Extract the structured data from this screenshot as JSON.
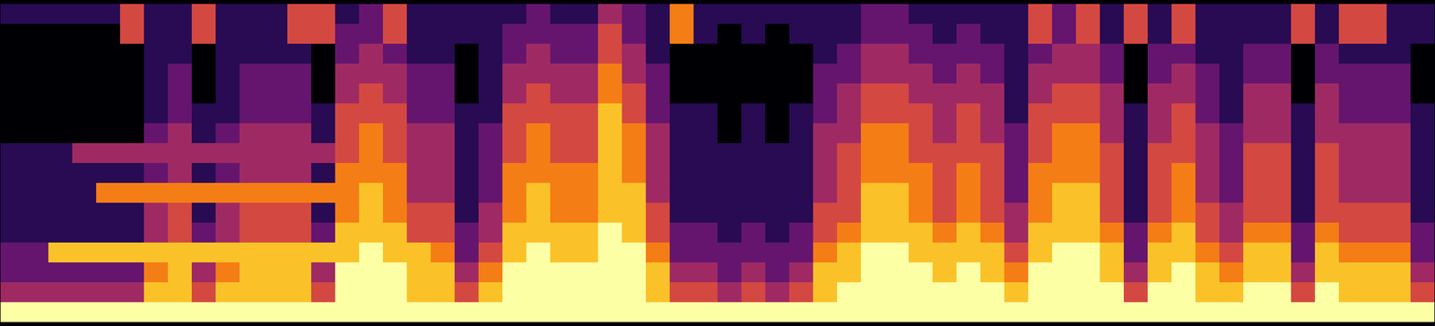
{
  "chart_data": {
    "type": "heatmap",
    "tick_labels": false,
    "cells": [
      [
        3,
        3,
        3,
        3,
        3,
        6,
        3,
        3,
        6,
        3,
        3,
        3,
        6,
        6,
        3,
        4,
        6,
        3,
        3,
        3,
        3,
        3,
        4,
        3,
        3,
        5,
        4,
        3,
        7,
        3,
        3,
        3,
        3,
        3,
        3,
        3,
        4,
        4,
        3,
        3,
        3,
        3,
        3,
        6,
        4,
        6,
        3,
        6,
        3,
        6,
        3,
        3,
        3,
        3,
        6,
        3,
        6,
        6,
        3,
        3
      ],
      [
        2,
        2,
        2,
        2,
        2,
        6,
        3,
        3,
        6,
        3,
        3,
        3,
        6,
        6,
        4,
        4,
        6,
        3,
        3,
        3,
        3,
        4,
        4,
        4,
        4,
        6,
        4,
        3,
        7,
        3,
        2,
        3,
        2,
        3,
        3,
        3,
        4,
        4,
        4,
        3,
        4,
        3,
        3,
        6,
        4,
        6,
        3,
        6,
        3,
        6,
        3,
        3,
        3,
        3,
        6,
        3,
        6,
        6,
        3,
        3
      ],
      [
        2,
        2,
        2,
        2,
        2,
        2,
        3,
        3,
        2,
        3,
        3,
        3,
        3,
        2,
        4,
        5,
        4,
        3,
        3,
        2,
        3,
        4,
        5,
        4,
        4,
        6,
        5,
        3,
        2,
        2,
        2,
        2,
        2,
        2,
        3,
        4,
        5,
        5,
        4,
        4,
        4,
        4,
        3,
        4,
        5,
        5,
        4,
        2,
        4,
        4,
        3,
        3,
        4,
        4,
        2,
        4,
        3,
        3,
        3,
        2
      ],
      [
        2,
        2,
        2,
        2,
        2,
        2,
        3,
        4,
        2,
        3,
        4,
        4,
        4,
        2,
        5,
        5,
        5,
        4,
        4,
        2,
        3,
        5,
        5,
        5,
        5,
        7,
        5,
        4,
        2,
        2,
        2,
        2,
        2,
        2,
        4,
        4,
        5,
        5,
        5,
        4,
        5,
        4,
        3,
        5,
        5,
        5,
        4,
        2,
        4,
        5,
        4,
        3,
        4,
        4,
        2,
        4,
        4,
        4,
        4,
        2
      ],
      [
        2,
        2,
        2,
        2,
        2,
        2,
        3,
        4,
        2,
        3,
        4,
        4,
        4,
        2,
        5,
        6,
        5,
        4,
        4,
        2,
        3,
        5,
        6,
        5,
        5,
        7,
        6,
        4,
        2,
        2,
        2,
        2,
        2,
        2,
        4,
        5,
        6,
        6,
        5,
        5,
        5,
        5,
        3,
        5,
        6,
        6,
        5,
        2,
        5,
        5,
        4,
        3,
        5,
        5,
        2,
        5,
        4,
        4,
        4,
        2
      ],
      [
        2,
        2,
        2,
        2,
        2,
        2,
        3,
        4,
        3,
        3,
        4,
        4,
        4,
        3,
        6,
        6,
        6,
        4,
        4,
        3,
        3,
        6,
        6,
        6,
        6,
        8,
        6,
        4,
        3,
        3,
        2,
        3,
        2,
        3,
        4,
        5,
        6,
        6,
        6,
        5,
        6,
        5,
        3,
        6,
        6,
        6,
        5,
        3,
        5,
        6,
        4,
        3,
        5,
        5,
        3,
        5,
        4,
        4,
        4,
        3
      ],
      [
        2,
        2,
        2,
        2,
        2,
        2,
        4,
        5,
        3,
        4,
        5,
        5,
        5,
        3,
        6,
        7,
        6,
        5,
        5,
        3,
        4,
        6,
        7,
        6,
        6,
        8,
        7,
        5,
        3,
        3,
        2,
        3,
        2,
        3,
        5,
        5,
        7,
        7,
        6,
        5,
        6,
        5,
        4,
        6,
        7,
        7,
        5,
        3,
        5,
        6,
        5,
        4,
        5,
        5,
        3,
        5,
        5,
        5,
        5,
        3
      ],
      [
        3,
        3,
        3,
        5,
        5,
        5,
        5,
        5,
        5,
        5,
        5,
        5,
        5,
        5,
        6,
        7,
        6,
        5,
        5,
        3,
        4,
        6,
        7,
        6,
        6,
        8,
        7,
        5,
        3,
        3,
        3,
        3,
        3,
        3,
        5,
        6,
        7,
        7,
        6,
        6,
        6,
        6,
        4,
        6,
        7,
        7,
        6,
        3,
        6,
        6,
        5,
        4,
        6,
        6,
        3,
        6,
        5,
        5,
        5,
        3
      ],
      [
        3,
        3,
        3,
        3,
        3,
        3,
        4,
        5,
        3,
        4,
        5,
        5,
        5,
        3,
        7,
        7,
        7,
        5,
        5,
        3,
        4,
        7,
        7,
        7,
        7,
        8,
        7,
        5,
        3,
        3,
        3,
        3,
        3,
        3,
        5,
        6,
        7,
        7,
        7,
        6,
        7,
        6,
        4,
        7,
        7,
        7,
        6,
        3,
        6,
        7,
        5,
        4,
        6,
        6,
        3,
        6,
        5,
        5,
        5,
        3
      ],
      [
        3,
        3,
        3,
        3,
        7,
        7,
        7,
        7,
        7,
        7,
        7,
        7,
        7,
        7,
        7,
        8,
        7,
        5,
        5,
        3,
        4,
        7,
        8,
        7,
        7,
        8,
        8,
        5,
        3,
        3,
        3,
        3,
        3,
        3,
        5,
        6,
        8,
        8,
        7,
        6,
        7,
        6,
        4,
        7,
        8,
        8,
        6,
        3,
        6,
        7,
        5,
        4,
        6,
        6,
        3,
        6,
        5,
        5,
        5,
        3
      ],
      [
        3,
        3,
        3,
        3,
        3,
        3,
        5,
        6,
        3,
        5,
        6,
        6,
        6,
        3,
        7,
        8,
        7,
        6,
        6,
        3,
        5,
        7,
        8,
        7,
        7,
        8,
        8,
        6,
        3,
        3,
        3,
        3,
        3,
        3,
        6,
        6,
        8,
        8,
        7,
        6,
        7,
        6,
        5,
        7,
        8,
        8,
        6,
        3,
        6,
        7,
        6,
        5,
        6,
        6,
        3,
        6,
        6,
        6,
        6,
        3
      ],
      [
        3,
        3,
        3,
        3,
        3,
        3,
        5,
        6,
        4,
        5,
        6,
        6,
        6,
        4,
        8,
        8,
        8,
        6,
        6,
        4,
        5,
        8,
        8,
        8,
        8,
        9,
        8,
        6,
        4,
        4,
        3,
        4,
        3,
        4,
        6,
        7,
        8,
        8,
        8,
        7,
        8,
        7,
        5,
        8,
        8,
        8,
        7,
        4,
        7,
        8,
        6,
        5,
        7,
        7,
        4,
        7,
        6,
        6,
        6,
        4
      ],
      [
        4,
        4,
        8,
        8,
        8,
        8,
        8,
        8,
        8,
        8,
        8,
        8,
        8,
        8,
        8,
        9,
        8,
        8,
        7,
        4,
        6,
        8,
        9,
        8,
        8,
        9,
        9,
        7,
        4,
        4,
        4,
        4,
        4,
        4,
        7,
        8,
        9,
        9,
        8,
        8,
        8,
        8,
        6,
        8,
        9,
        9,
        8,
        4,
        8,
        8,
        7,
        6,
        8,
        8,
        4,
        8,
        7,
        7,
        7,
        4
      ],
      [
        4,
        4,
        4,
        4,
        4,
        4,
        7,
        8,
        5,
        7,
        8,
        8,
        8,
        5,
        9,
        9,
        9,
        8,
        8,
        5,
        7,
        9,
        9,
        9,
        9,
        9,
        9,
        8,
        5,
        5,
        4,
        5,
        4,
        5,
        8,
        8,
        9,
        9,
        9,
        8,
        9,
        8,
        7,
        9,
        9,
        9,
        8,
        5,
        8,
        9,
        8,
        7,
        8,
        8,
        5,
        8,
        8,
        8,
        8,
        5
      ],
      [
        5,
        5,
        5,
        5,
        5,
        5,
        8,
        8,
        6,
        8,
        8,
        8,
        8,
        6,
        9,
        9,
        9,
        8,
        8,
        6,
        8,
        9,
        9,
        9,
        9,
        9,
        9,
        8,
        6,
        6,
        5,
        6,
        5,
        6,
        8,
        9,
        9,
        9,
        9,
        9,
        9,
        9,
        8,
        9,
        9,
        9,
        9,
        6,
        9,
        9,
        8,
        8,
        9,
        9,
        6,
        9,
        8,
        8,
        8,
        6
      ],
      [
        9,
        9,
        9,
        9,
        9,
        9,
        9,
        9,
        9,
        9,
        9,
        9,
        9,
        9,
        9,
        9,
        9,
        9,
        9,
        9,
        9,
        9,
        9,
        9,
        9,
        9,
        9,
        9,
        9,
        9,
        9,
        9,
        9,
        9,
        9,
        9,
        9,
        9,
        9,
        9,
        9,
        9,
        9,
        9,
        9,
        9,
        9,
        9,
        9,
        9,
        9,
        9,
        9,
        9,
        9,
        9,
        9,
        9,
        9,
        9
      ]
    ]
  }
}
